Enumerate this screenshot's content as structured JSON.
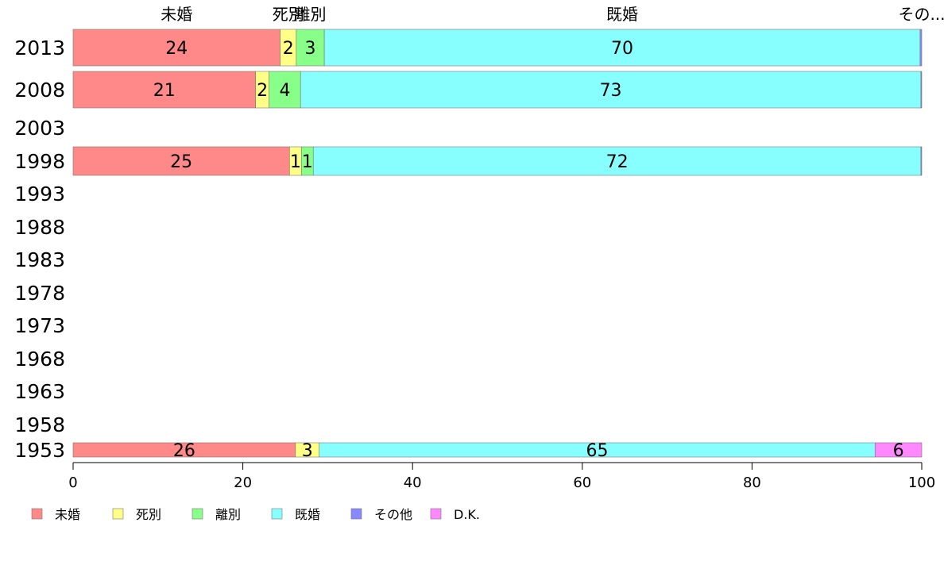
{
  "chart_data": {
    "type": "bar",
    "orientation": "horizontal",
    "stacked": true,
    "title": "",
    "xlabel": "",
    "ylabel": "",
    "xlim": [
      0,
      100
    ],
    "x_ticks": [
      0,
      20,
      40,
      60,
      80,
      100
    ],
    "grid": false,
    "legend_position": "bottom-left",
    "top_labels": [
      "未婚",
      "死別",
      "離別",
      "既婚",
      "その..."
    ],
    "categories": [
      "2013",
      "2008",
      "2003",
      "1998",
      "1993",
      "1988",
      "1983",
      "1978",
      "1973",
      "1968",
      "1963",
      "1958",
      "1953"
    ],
    "series": [
      {
        "name": "未婚",
        "color": "#ff8888",
        "values": [
          24.4,
          21.5,
          null,
          25.5,
          null,
          null,
          null,
          null,
          null,
          null,
          null,
          null,
          26.2
        ]
      },
      {
        "name": "死別",
        "color": "#ffff88",
        "values": [
          1.9,
          1.6,
          null,
          1.4,
          null,
          null,
          null,
          null,
          null,
          null,
          null,
          null,
          2.8
        ]
      },
      {
        "name": "離別",
        "color": "#88ff88",
        "values": [
          3.3,
          3.7,
          null,
          1.4,
          null,
          null,
          null,
          null,
          null,
          null,
          null,
          null,
          0.0
        ]
      },
      {
        "name": "既婚",
        "color": "#88ffff",
        "values": [
          70.2,
          73.1,
          null,
          71.6,
          null,
          null,
          null,
          null,
          null,
          null,
          null,
          null,
          65.5
        ]
      },
      {
        "name": "その他",
        "color": "#8888ff",
        "values": [
          0.2,
          0.1,
          null,
          0.1,
          null,
          null,
          null,
          null,
          null,
          null,
          null,
          null,
          0.0
        ]
      },
      {
        "name": "D.K.",
        "color": "#ff88ff",
        "values": [
          0.0,
          0.0,
          null,
          0.0,
          null,
          null,
          null,
          null,
          null,
          null,
          null,
          null,
          5.5
        ]
      }
    ],
    "data_labels": [
      [
        "24",
        "2",
        "3",
        "70",
        "",
        ""
      ],
      [
        "21",
        "2",
        "4",
        "73",
        "",
        ""
      ],
      null,
      [
        "25",
        "1",
        "1",
        "72",
        "",
        ""
      ],
      null,
      null,
      null,
      null,
      null,
      null,
      null,
      null,
      [
        "26",
        "3",
        "",
        "65",
        "",
        "6"
      ]
    ]
  }
}
